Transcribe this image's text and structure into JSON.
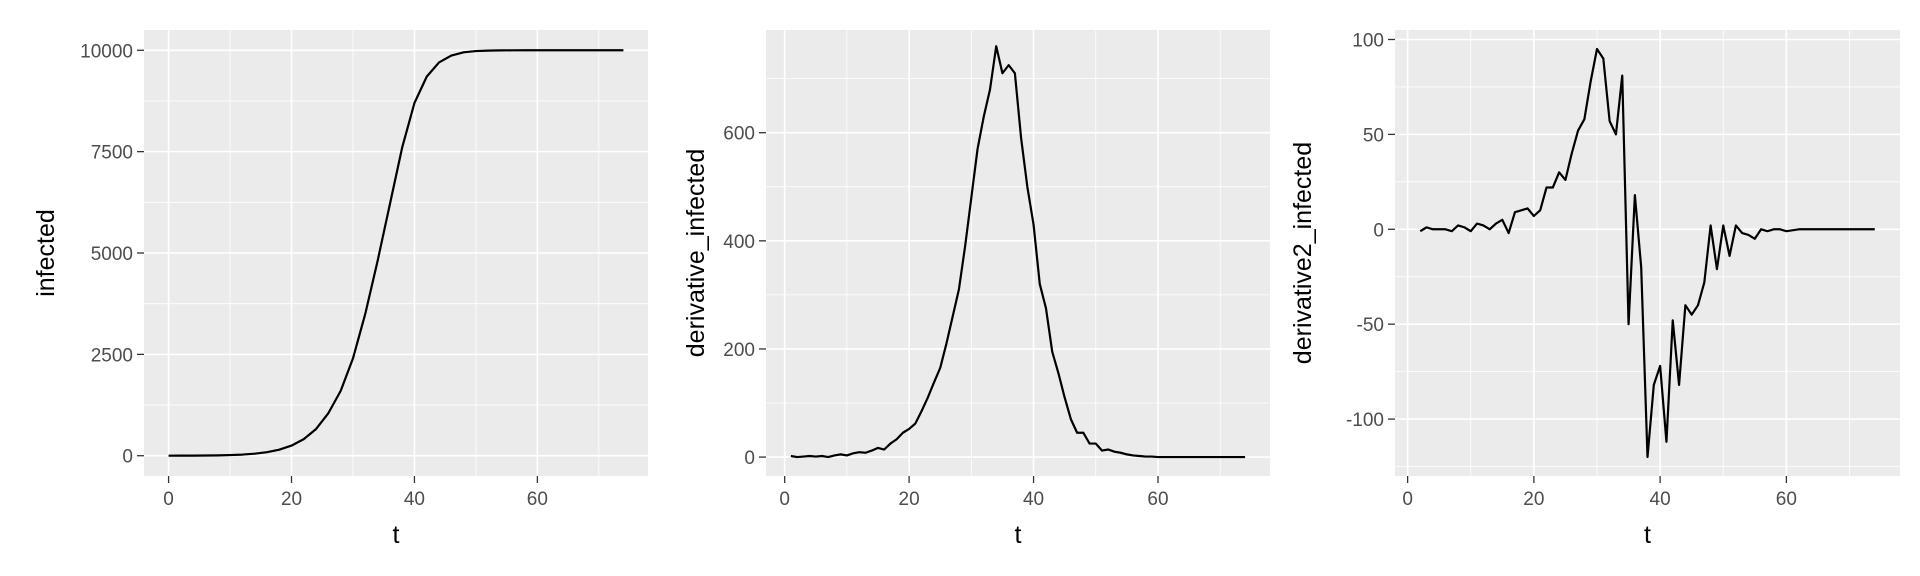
{
  "chart_data": [
    {
      "type": "line",
      "xlabel": "t",
      "ylabel": "infected",
      "xlim": [
        -4,
        78
      ],
      "ylim": [
        -500,
        10500
      ],
      "x_ticks": [
        0,
        20,
        40,
        60
      ],
      "y_ticks": [
        0,
        2500,
        5000,
        7500,
        10000
      ],
      "y_tick_labels": [
        "0",
        "2500",
        "5000",
        "7500",
        "10000"
      ],
      "grid": true,
      "series": [
        {
          "x": [
            0,
            2,
            4,
            6,
            8,
            10,
            12,
            14,
            16,
            18,
            20,
            22,
            24,
            26,
            28,
            30,
            32,
            34,
            36,
            38,
            40,
            42,
            44,
            46,
            48,
            50,
            52,
            54,
            56,
            58,
            60,
            62,
            64,
            66,
            68,
            70,
            72,
            74
          ],
          "y": [
            1,
            2,
            3,
            5,
            9,
            16,
            28,
            50,
            88,
            150,
            250,
            410,
            660,
            1050,
            1600,
            2400,
            3500,
            4800,
            6200,
            7600,
            8700,
            9350,
            9700,
            9870,
            9950,
            9980,
            9992,
            9997,
            9999,
            10000,
            10000,
            10000,
            10000,
            10000,
            10000,
            10000,
            10000,
            10000
          ]
        }
      ]
    },
    {
      "type": "line",
      "xlabel": "t",
      "ylabel": "derivative_infected",
      "xlim": [
        -3,
        78
      ],
      "ylim": [
        -35,
        790
      ],
      "x_ticks": [
        0,
        20,
        40,
        60
      ],
      "y_ticks": [
        0,
        200,
        400,
        600
      ],
      "y_tick_labels": [
        "0",
        "200",
        "400",
        "600"
      ],
      "grid": true,
      "series": [
        {
          "x": [
            1,
            2,
            3,
            4,
            5,
            6,
            7,
            8,
            9,
            10,
            11,
            12,
            13,
            14,
            15,
            16,
            17,
            18,
            19,
            20,
            21,
            22,
            23,
            24,
            25,
            26,
            27,
            28,
            29,
            30,
            31,
            32,
            33,
            34,
            35,
            36,
            37,
            38,
            39,
            40,
            41,
            42,
            43,
            44,
            45,
            46,
            47,
            48,
            49,
            50,
            51,
            52,
            53,
            54,
            55,
            56,
            57,
            58,
            59,
            60,
            62,
            64,
            66,
            68,
            70,
            72,
            74
          ],
          "y": [
            2,
            0,
            1,
            2,
            1,
            2,
            0,
            3,
            5,
            3,
            7,
            9,
            8,
            12,
            17,
            14,
            25,
            33,
            45,
            52,
            62,
            85,
            110,
            138,
            165,
            210,
            260,
            310,
            390,
            480,
            570,
            630,
            680,
            760,
            710,
            725,
            710,
            590,
            500,
            430,
            320,
            275,
            195,
            155,
            110,
            70,
            45,
            45,
            25,
            25,
            12,
            14,
            10,
            8,
            5,
            3,
            2,
            1,
            1,
            0,
            0,
            0,
            0,
            0,
            0,
            0,
            0
          ]
        }
      ]
    },
    {
      "type": "line",
      "xlabel": "t",
      "ylabel": "derivative2_infected",
      "xlim": [
        -2,
        78
      ],
      "ylim": [
        -130,
        105
      ],
      "x_ticks": [
        0,
        20,
        40,
        60
      ],
      "y_ticks": [
        -100,
        -50,
        0,
        50,
        100
      ],
      "y_tick_labels": [
        "-100",
        "-50",
        "0",
        "50",
        "100"
      ],
      "grid": true,
      "series": [
        {
          "x": [
            2,
            3,
            4,
            5,
            6,
            7,
            8,
            9,
            10,
            11,
            12,
            13,
            14,
            15,
            16,
            17,
            18,
            19,
            20,
            21,
            22,
            23,
            24,
            25,
            26,
            27,
            28,
            29,
            30,
            31,
            32,
            33,
            34,
            35,
            36,
            37,
            38,
            39,
            40,
            41,
            42,
            43,
            44,
            45,
            46,
            47,
            48,
            49,
            50,
            51,
            52,
            53,
            54,
            55,
            56,
            57,
            58,
            59,
            60,
            62,
            64,
            66,
            68,
            70,
            72,
            74
          ],
          "y": [
            -1,
            1,
            0,
            0,
            0,
            -1,
            2,
            1,
            -1,
            3,
            2,
            0,
            3,
            5,
            -2,
            9,
            10,
            11,
            7,
            10,
            22,
            22,
            30,
            26,
            40,
            52,
            58,
            78,
            95,
            90,
            57,
            50,
            81,
            -50,
            18,
            -20,
            -120,
            -82,
            -72,
            -112,
            -48,
            -82,
            -40,
            -45,
            -40,
            -28,
            2,
            -21,
            2,
            -14,
            2,
            -2,
            -3,
            -5,
            0,
            -1,
            0,
            0,
            -1,
            0,
            0,
            0,
            0,
            0,
            0,
            0
          ]
        }
      ]
    }
  ]
}
